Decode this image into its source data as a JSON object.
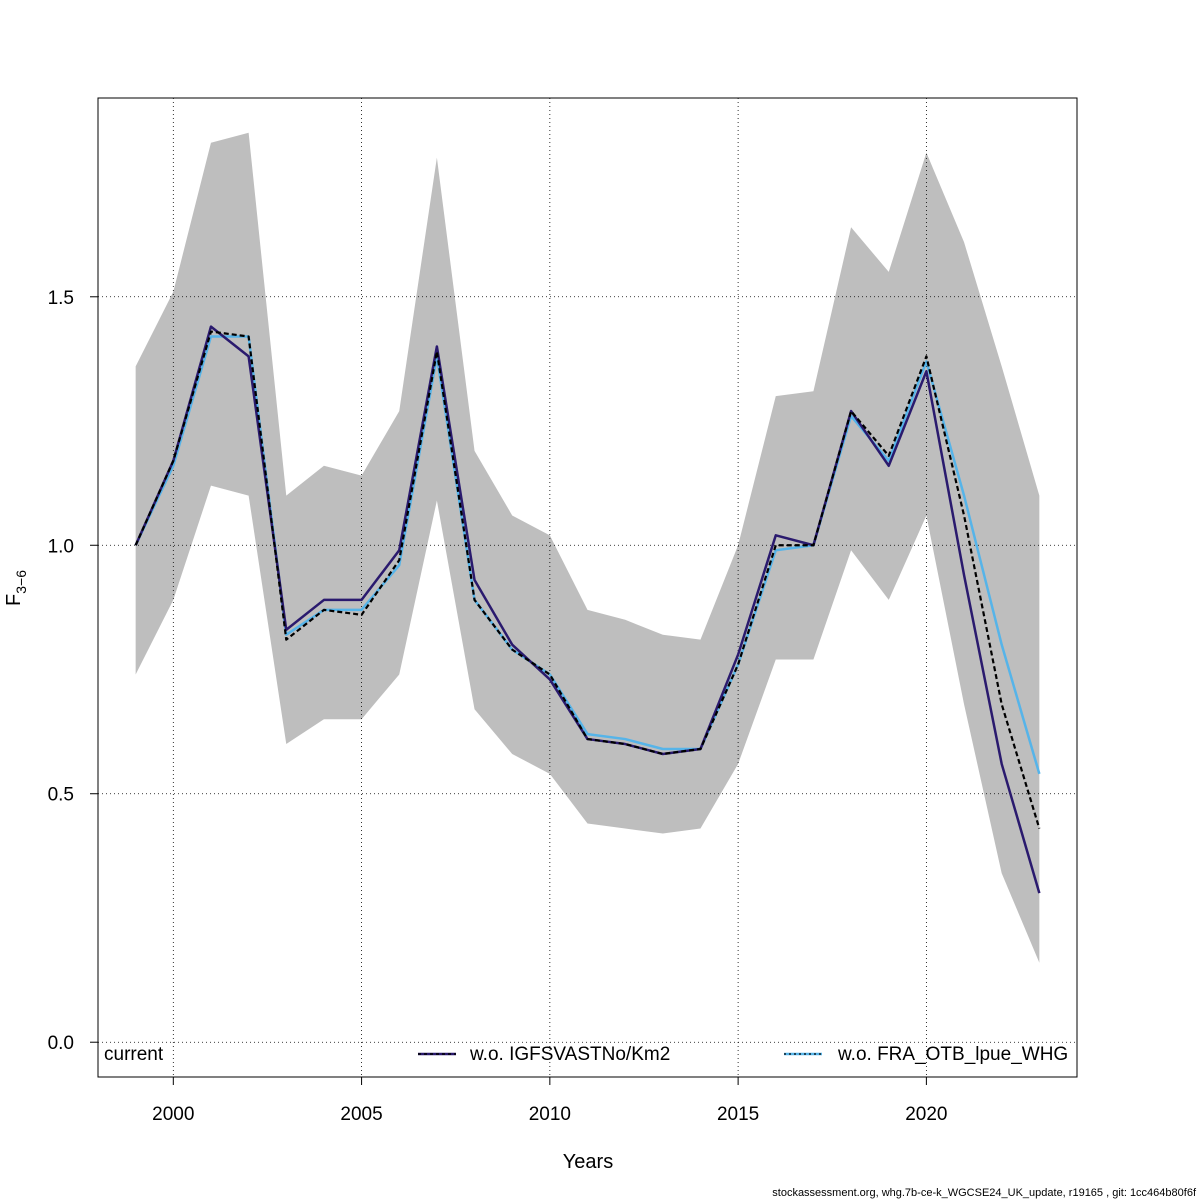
{
  "chart_data": {
    "type": "line",
    "xlabel": "Years",
    "ylabel_main": "F",
    "ylabel_sub": "3−6",
    "xlim": [
      1998,
      2024
    ],
    "ylim": [
      -0.07,
      1.9
    ],
    "xticks": [
      2000,
      2005,
      2010,
      2015,
      2020
    ],
    "yticks": [
      0.0,
      0.5,
      1.0,
      1.5
    ],
    "ytick_labels": [
      "0.0",
      "0.5",
      "1.0",
      "1.5"
    ],
    "grid": true,
    "x": [
      1999,
      2000,
      2001,
      2002,
      2003,
      2004,
      2005,
      2006,
      2007,
      2008,
      2009,
      2010,
      2011,
      2012,
      2013,
      2014,
      2015,
      2016,
      2017,
      2018,
      2019,
      2020,
      2021,
      2022,
      2023
    ],
    "band": {
      "upper": [
        1.36,
        1.51,
        1.81,
        1.83,
        1.1,
        1.16,
        1.14,
        1.27,
        1.78,
        1.19,
        1.06,
        1.02,
        0.87,
        0.85,
        0.82,
        0.81,
        1.0,
        1.3,
        1.31,
        1.64,
        1.55,
        1.79,
        1.61,
        1.36,
        1.1
      ],
      "lower": [
        0.74,
        0.89,
        1.12,
        1.1,
        0.6,
        0.65,
        0.65,
        0.74,
        1.09,
        0.67,
        0.58,
        0.54,
        0.44,
        0.43,
        0.42,
        0.43,
        0.56,
        0.77,
        0.77,
        0.99,
        0.89,
        1.06,
        0.68,
        0.34,
        0.16
      ],
      "color": "#bebebe"
    },
    "series": [
      {
        "name": "current",
        "color": "#000000",
        "style": "dashed",
        "values": [
          1.0,
          1.17,
          1.43,
          1.42,
          0.81,
          0.87,
          0.86,
          0.97,
          1.39,
          0.89,
          0.79,
          0.74,
          0.61,
          0.6,
          0.58,
          0.59,
          0.76,
          1.0,
          1.0,
          1.27,
          1.18,
          1.38,
          1.06,
          0.68,
          0.43
        ]
      },
      {
        "name": "w.o. IGFSVASTNo/Km2",
        "color": "#2a1a6e",
        "style": "solid",
        "values": [
          1.0,
          1.17,
          1.44,
          1.38,
          0.83,
          0.89,
          0.89,
          0.99,
          1.4,
          0.93,
          0.8,
          0.73,
          0.61,
          0.6,
          0.58,
          0.59,
          0.78,
          1.02,
          1.0,
          1.27,
          1.16,
          1.35,
          0.94,
          0.56,
          0.3
        ]
      },
      {
        "name": "w.o. FRA_OTB_lpue_WHG",
        "color": "#56b4e9",
        "style": "solid",
        "values": [
          1.0,
          1.16,
          1.42,
          1.42,
          0.82,
          0.87,
          0.87,
          0.96,
          1.38,
          0.89,
          0.79,
          0.74,
          0.62,
          0.61,
          0.59,
          0.59,
          0.76,
          0.99,
          1.0,
          1.26,
          1.17,
          1.37,
          1.1,
          0.8,
          0.54
        ]
      }
    ],
    "legend": {
      "position": "bottom",
      "current_label": "current",
      "entry1_label": "w.o. IGFSVASTNo/Km2",
      "entry2_label": "w.o. FRA_OTB_lpue_WHG"
    }
  },
  "footer_text": "stockassessment.org, whg.7b-ce-k_WGCSE24_UK_update, r19165 , git: 1cc464b80f6f"
}
